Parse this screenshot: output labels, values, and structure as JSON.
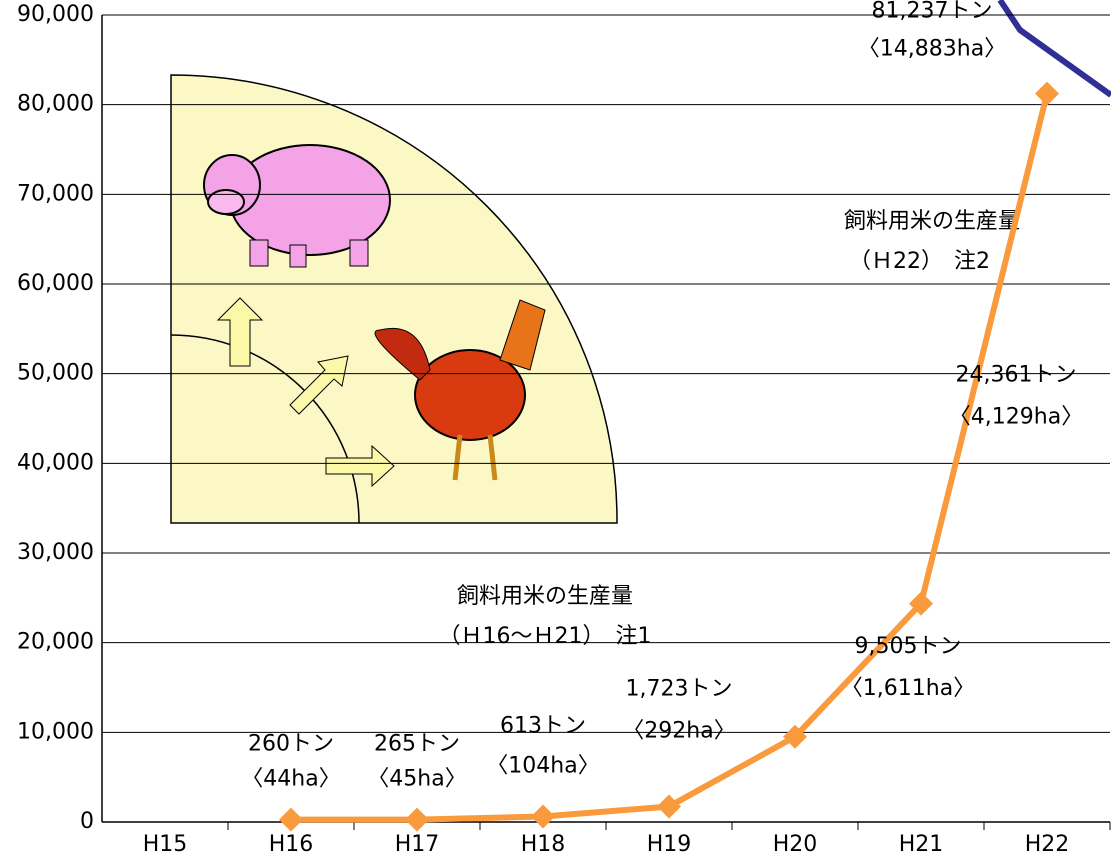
{
  "chart_data": {
    "type": "line",
    "categories": [
      "H15",
      "H16",
      "H17",
      "H18",
      "H19",
      "H20",
      "H21",
      "H22"
    ],
    "values": [
      null,
      260,
      265,
      613,
      1723,
      9505,
      24361,
      81237
    ],
    "value_labels": [
      null,
      "260トン",
      "265トン",
      "613トン",
      "1,723トン",
      "9,505トン",
      "24,361トン",
      "81,237トン"
    ],
    "area_labels": [
      null,
      "〈44ha〉",
      "〈45ha〉",
      "〈104ha〉",
      "〈292ha〉",
      "〈1,611ha〉",
      "〈4,129ha〉",
      "〈14,883ha〉"
    ],
    "color": "#f99b3c",
    "ylim": [
      0,
      90000
    ],
    "yticks": [
      0,
      {
        "value": 10000,
        "label": "10,000"
      },
      {
        "value": 20000,
        "label": "20,000"
      },
      {
        "value": 30000,
        "label": "30,000"
      },
      {
        "value": 40000,
        "label": "40,000"
      },
      {
        "value": 50000,
        "label": "50,000"
      },
      {
        "value": 60000,
        "label": "60,000"
      },
      {
        "value": 70000,
        "label": "70,000"
      },
      {
        "value": 80000,
        "label": "80,000"
      },
      {
        "value": {
          "value": 90000,
          "label": "90,000"
        },
        "label": "90,000"
      }
    ],
    "grid": true,
    "annotations": [
      "飼料用米の生産量",
      "（Ｈ16～Ｈ21）　注1",
      "飼料用米の生産量",
      "（Ｈ22）　注2"
    ]
  }
}
